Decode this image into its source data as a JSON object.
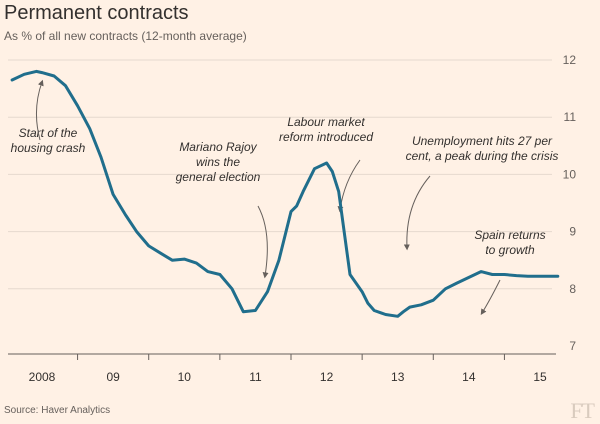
{
  "header": {
    "title": "Permanent contracts",
    "subtitle": "As % of all new contracts (12-month average)"
  },
  "footer": {
    "source": "Source: Haver Analytics",
    "logo": "FT"
  },
  "colors": {
    "background": "#fff1e5",
    "line": "#206e8c",
    "grid": "#e6d9ce",
    "annotation_arrow": "#66605c"
  },
  "chart_data": {
    "type": "line",
    "title": "Permanent contracts",
    "subtitle": "As % of all new contracts (12-month average)",
    "xlabel": "",
    "ylabel": "",
    "ylim": [
      7,
      12
    ],
    "yticks": [
      7,
      8,
      9,
      10,
      11,
      12
    ],
    "x_tick_labels": [
      "2008",
      "09",
      "10",
      "11",
      "12",
      "13",
      "14",
      "15"
    ],
    "x_tick_positions": [
      2008.0,
      2009.0,
      2010.0,
      2011.0,
      2012.0,
      2013.0,
      2014.0,
      2015.0
    ],
    "xlim": [
      2007.5,
      2015.5
    ],
    "grid": true,
    "y_axis_side": "right",
    "series": [
      {
        "name": "",
        "x": [
          2007.58,
          2007.75,
          2007.92,
          2008.0,
          2008.17,
          2008.33,
          2008.5,
          2008.67,
          2008.83,
          2009.0,
          2009.17,
          2009.33,
          2009.5,
          2009.67,
          2009.83,
          2010.0,
          2010.17,
          2010.33,
          2010.5,
          2010.67,
          2010.83,
          2011.0,
          2011.17,
          2011.33,
          2011.5,
          2011.58,
          2011.67,
          2011.83,
          2012.0,
          2012.08,
          2012.17,
          2012.33,
          2012.5,
          2012.58,
          2012.67,
          2012.83,
          2013.0,
          2013.08,
          2013.17,
          2013.33,
          2013.5,
          2013.67,
          2013.83,
          2014.0,
          2014.17,
          2014.33,
          2014.5,
          2014.67,
          2014.83,
          2015.0,
          2015.08,
          2015.17,
          2015.25
        ],
        "y": [
          11.65,
          11.75,
          11.8,
          11.78,
          11.72,
          11.55,
          11.2,
          10.8,
          10.3,
          9.65,
          9.3,
          9.0,
          8.75,
          8.62,
          8.5,
          8.52,
          8.45,
          8.3,
          8.25,
          8.0,
          7.6,
          7.62,
          7.95,
          8.5,
          9.35,
          9.45,
          9.7,
          10.1,
          10.2,
          10.05,
          9.7,
          8.25,
          7.95,
          7.75,
          7.62,
          7.55,
          7.52,
          7.6,
          7.68,
          7.72,
          7.8,
          8.0,
          8.1,
          8.2,
          8.3,
          8.25,
          8.25,
          8.23,
          8.22,
          8.22,
          8.22,
          8.22,
          8.22
        ]
      }
    ],
    "annotations": [
      {
        "label_lines": [
          "Start of the",
          "housing crash"
        ],
        "target": [
          2008.0,
          11.75
        ]
      },
      {
        "label_lines": [
          "Mariano Rajoy",
          "wins the",
          "general election"
        ],
        "target": [
          2011.0,
          8.22
        ]
      },
      {
        "label_lines": [
          "Labour market",
          "reform introduced"
        ],
        "target": [
          2012.0,
          9.6
        ]
      },
      {
        "label_lines": [
          "Unemployment hits 27 per",
          "cent, a peak during the crisis"
        ],
        "target": [
          2013.0,
          8.65
        ]
      },
      {
        "label_lines": [
          "Spain returns",
          "to growth"
        ],
        "target": [
          2014.0,
          7.73
        ]
      }
    ]
  }
}
